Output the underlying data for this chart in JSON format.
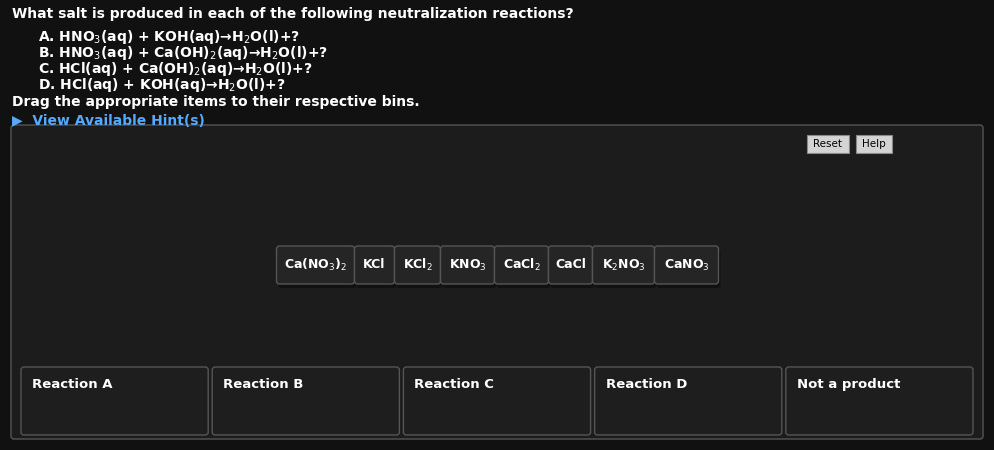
{
  "bg_color": "#111111",
  "text_color": "#ffffff",
  "title": "What salt is produced in each of the following neutralization reactions?",
  "reactions": [
    "A. HNO$_3$(aq) + KOH(aq)→H$_2$O(l)+?",
    "B. HNO$_3$(aq) + Ca(OH)$_2$(aq)→H$_2$O(l)+?",
    "C. HCl(aq) + Ca(OH)$_2$(aq)→H$_2$O(l)+?",
    "D. HCl(aq) + KOH(aq)→H$_2$O(l)+?"
  ],
  "drag_text": "Drag the appropriate items to their respective bins.",
  "hint_text": "▶  View Available Hint(s)",
  "hint_color": "#55aaff",
  "items": [
    "Ca(NO$_3$)$_2$",
    "KCl",
    "KCl$_2$",
    "KNO$_3$",
    "CaCl$_2$",
    "CaCl",
    "K$_2$NO$_3$",
    "CaNO$_3$"
  ],
  "bins": [
    "Reaction A",
    "Reaction B",
    "Reaction C",
    "Reaction D",
    "Not a product"
  ],
  "panel_bg": "#1c1c1c",
  "panel_border": "#555555",
  "item_bg": "#252525",
  "item_border": "#555555",
  "item_border_dark": "#111111",
  "bin_bg": "#1e1e1e",
  "bin_border": "#555555",
  "button_bg": "#d4d4d4",
  "button_text": "#000000",
  "button_border": "#888888"
}
